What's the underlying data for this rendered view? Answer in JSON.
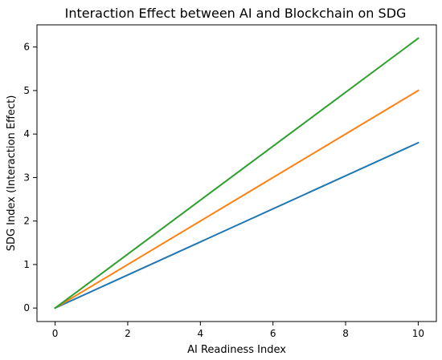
{
  "chart_data": {
    "type": "line",
    "title": "Interaction Effect between AI and Blockchain on SDG",
    "xlabel": "AI Readiness Index",
    "ylabel": "SDG Index (Interaction Effect)",
    "xlim": [
      -0.5,
      10.5
    ],
    "ylim": [
      -0.31,
      6.51
    ],
    "xticks": [
      0,
      2,
      4,
      6,
      8,
      10
    ],
    "yticks": [
      0,
      1,
      2,
      3,
      4,
      5,
      6
    ],
    "grid": false,
    "legend": "none",
    "series": [
      {
        "color": "#1f77b4",
        "x": [
          0,
          10
        ],
        "y": [
          0,
          3.8
        ]
      },
      {
        "color": "#ff7f0e",
        "x": [
          0,
          10
        ],
        "y": [
          0,
          5.0
        ]
      },
      {
        "color": "#2ca02c",
        "x": [
          0,
          10
        ],
        "y": [
          0,
          6.2
        ]
      }
    ]
  }
}
